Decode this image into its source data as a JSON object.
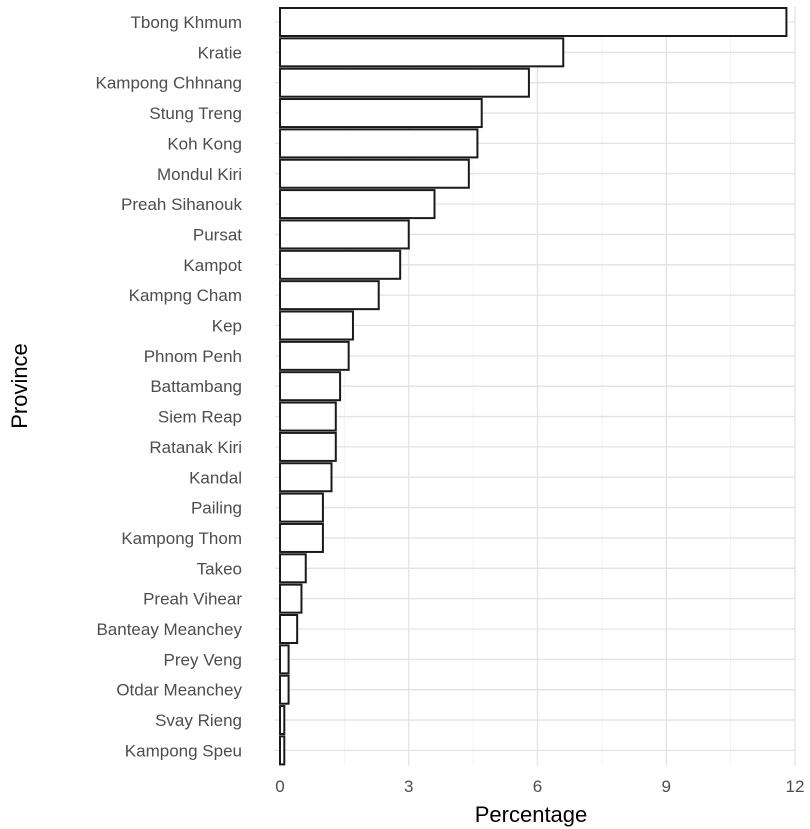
{
  "chart_data": {
    "type": "bar",
    "orientation": "horizontal",
    "xlabel": "Percentage",
    "ylabel": "Province",
    "xlim": [
      0,
      12
    ],
    "x_ticks": [
      0,
      3,
      6,
      9,
      12
    ],
    "grid": true,
    "legend": "none",
    "bar_fill": "#ffffff",
    "bar_outline": "#1a1a1a",
    "categories": [
      "Tbong Khmum",
      "Kratie",
      "Kampong Chhnang",
      "Stung Treng",
      "Koh Kong",
      "Mondul Kiri",
      "Preah Sihanouk",
      "Pursat",
      "Kampot",
      "Kampng Cham",
      "Kep",
      "Phnom Penh",
      "Battambang",
      "Siem Reap",
      "Ratanak Kiri",
      "Kandal",
      "Pailing",
      "Kampong Thom",
      "Takeo",
      "Preah Vihear",
      "Banteay Meanchey",
      "Prey Veng",
      "Otdar Meanchey",
      "Svay Rieng",
      "Kampong Speu"
    ],
    "values": [
      11.8,
      6.6,
      5.8,
      4.7,
      4.6,
      4.4,
      3.6,
      3.0,
      2.8,
      2.3,
      1.7,
      1.6,
      1.4,
      1.3,
      1.3,
      1.2,
      1.0,
      1.0,
      0.6,
      0.5,
      0.4,
      0.2,
      0.2,
      0.1,
      0.1
    ]
  }
}
